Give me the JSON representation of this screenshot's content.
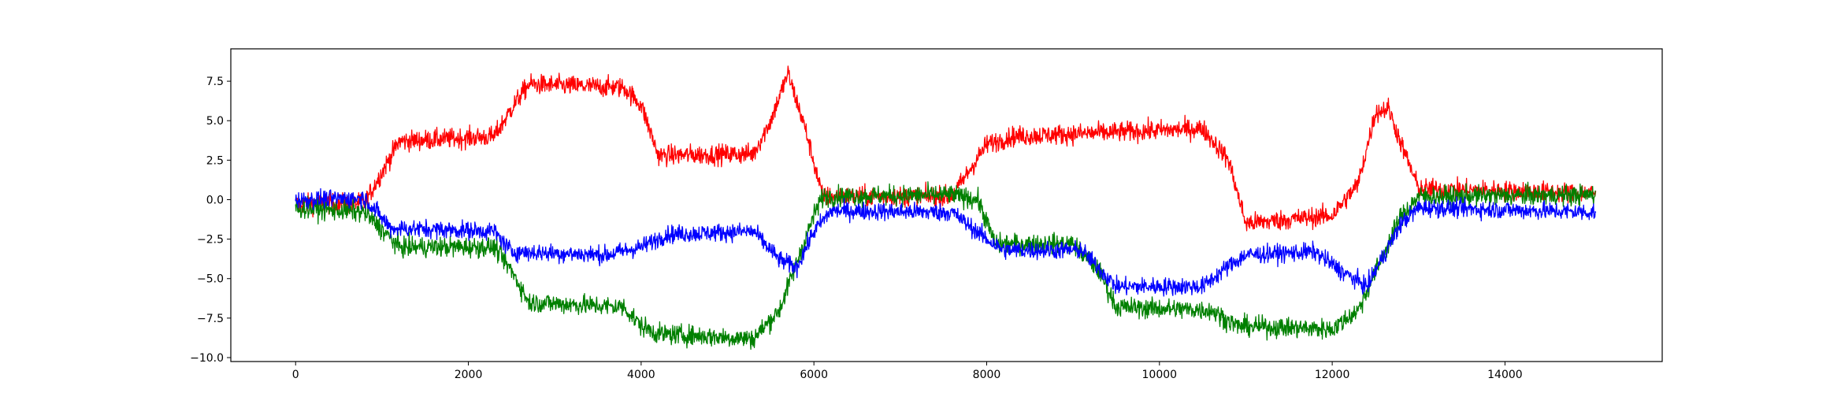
{
  "chart_data": {
    "type": "line",
    "title": "",
    "xlabel": "",
    "ylabel": "",
    "xlim": [
      -750,
      15820
    ],
    "ylim": [
      -10.25,
      9.55
    ],
    "x_ticks": [
      0,
      2000,
      4000,
      6000,
      8000,
      10000,
      12000,
      14000
    ],
    "x_tick_labels": [
      "0",
      "2000",
      "4000",
      "6000",
      "8000",
      "10000",
      "12000",
      "14000"
    ],
    "y_ticks": [
      7.5,
      5.0,
      2.5,
      0.0,
      -2.5,
      -5.0,
      -7.5,
      -10.0
    ],
    "y_tick_labels": [
      "7.5",
      "5.0",
      "2.5",
      "0.0",
      "−2.5",
      "−5.0",
      "−7.5",
      "−10.0"
    ],
    "grid": false,
    "legend": "none",
    "series": [
      {
        "color": "#ff0000",
        "noise": 0.45,
        "points": [
          [
            0,
            -0.3
          ],
          [
            800,
            -0.2
          ],
          [
            1200,
            3.7
          ],
          [
            2300,
            4.0
          ],
          [
            2550,
            6.2
          ],
          [
            2700,
            7.3
          ],
          [
            3800,
            7.1
          ],
          [
            4000,
            6.0
          ],
          [
            4200,
            2.8
          ],
          [
            5300,
            2.9
          ],
          [
            5500,
            5.0
          ],
          [
            5700,
            8.0
          ],
          [
            5900,
            4.5
          ],
          [
            6100,
            0.2
          ],
          [
            7600,
            0.2
          ],
          [
            8000,
            3.5
          ],
          [
            8300,
            4.0
          ],
          [
            10500,
            4.5
          ],
          [
            10800,
            2.5
          ],
          [
            11000,
            -1.5
          ],
          [
            12000,
            -1.0
          ],
          [
            12300,
            1.0
          ],
          [
            12500,
            5.5
          ],
          [
            12650,
            5.8
          ],
          [
            12800,
            3.5
          ],
          [
            13000,
            0.7
          ],
          [
            15050,
            0.4
          ]
        ]
      },
      {
        "color": "#008000",
        "noise": 0.45,
        "points": [
          [
            0,
            -0.5
          ],
          [
            800,
            -0.8
          ],
          [
            1200,
            -3.0
          ],
          [
            2300,
            -3.0
          ],
          [
            2500,
            -4.5
          ],
          [
            2700,
            -6.5
          ],
          [
            3800,
            -6.8
          ],
          [
            4000,
            -8.0
          ],
          [
            4200,
            -8.5
          ],
          [
            5300,
            -8.8
          ],
          [
            5600,
            -7.0
          ],
          [
            6000,
            -1.0
          ],
          [
            6100,
            0.2
          ],
          [
            7600,
            0.3
          ],
          [
            7900,
            0.0
          ],
          [
            8100,
            -2.8
          ],
          [
            9000,
            -2.8
          ],
          [
            9300,
            -4.5
          ],
          [
            9500,
            -6.8
          ],
          [
            10600,
            -7.0
          ],
          [
            10900,
            -8.0
          ],
          [
            12000,
            -8.2
          ],
          [
            12300,
            -7.0
          ],
          [
            12550,
            -4.0
          ],
          [
            12800,
            -1.0
          ],
          [
            13000,
            0.2
          ],
          [
            15050,
            0.3
          ]
        ]
      },
      {
        "color": "#0000ff",
        "noise": 0.4,
        "points": [
          [
            0,
            0.0
          ],
          [
            800,
            0.1
          ],
          [
            1100,
            -1.8
          ],
          [
            2300,
            -2.0
          ],
          [
            2500,
            -3.3
          ],
          [
            3600,
            -3.5
          ],
          [
            4000,
            -3.0
          ],
          [
            4300,
            -2.2
          ],
          [
            5300,
            -2.0
          ],
          [
            5600,
            -3.8
          ],
          [
            5800,
            -4.3
          ],
          [
            6000,
            -2.0
          ],
          [
            6200,
            -0.7
          ],
          [
            7600,
            -0.8
          ],
          [
            8000,
            -2.5
          ],
          [
            8200,
            -3.2
          ],
          [
            9100,
            -3.2
          ],
          [
            9500,
            -5.5
          ],
          [
            10500,
            -5.5
          ],
          [
            10800,
            -4.2
          ],
          [
            11000,
            -3.5
          ],
          [
            11800,
            -3.3
          ],
          [
            12100,
            -4.5
          ],
          [
            12400,
            -5.5
          ],
          [
            12800,
            -1.5
          ],
          [
            13000,
            -0.5
          ],
          [
            15050,
            -0.8
          ]
        ]
      }
    ]
  }
}
